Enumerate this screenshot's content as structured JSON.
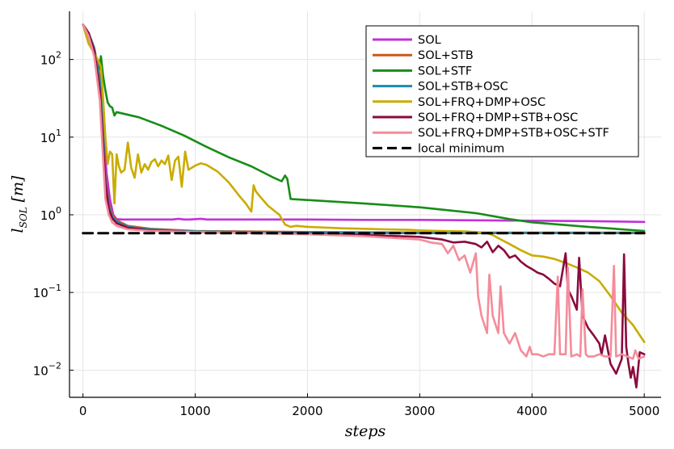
{
  "chart_data": {
    "type": "line",
    "xlabel": "steps",
    "ylabel": "l_SOL [m]",
    "ylabel_main": "l",
    "ylabel_sub": "SOL",
    "ylabel_unit": "[m]",
    "xlim": [
      -120,
      5150
    ],
    "ylim_log10": [
      -2.35,
      2.62
    ],
    "yscale": "log",
    "grid": true,
    "legend_position": "top-right",
    "x_ticks": [
      0,
      1000,
      2000,
      3000,
      4000,
      5000
    ],
    "x_tick_labels": [
      "0",
      "1000",
      "2000",
      "3000",
      "4000",
      "5000"
    ],
    "y_ticks": [
      {
        "mantissa": "10",
        "exp": "2",
        "value": 100
      },
      {
        "mantissa": "10",
        "exp": "1",
        "value": 10
      },
      {
        "mantissa": "10",
        "exp": "0",
        "value": 1
      },
      {
        "mantissa": "10",
        "exp": "−1",
        "value": 0.1
      },
      {
        "mantissa": "10",
        "exp": "−2",
        "value": 0.01
      }
    ],
    "series": [
      {
        "name": "SOL",
        "color": "#c231d8",
        "dash": false,
        "x": [
          0,
          50,
          100,
          150,
          180,
          210,
          240,
          270,
          300,
          350,
          500,
          800,
          850,
          900,
          950,
          1050,
          1100,
          1300,
          1500,
          2000,
          2500,
          3000,
          3500,
          4000,
          4500,
          5000
        ],
        "y": [
          280,
          220,
          140,
          60,
          14,
          3.5,
          1.6,
          1.0,
          0.88,
          0.87,
          0.87,
          0.87,
          0.89,
          0.87,
          0.87,
          0.89,
          0.87,
          0.87,
          0.87,
          0.87,
          0.86,
          0.86,
          0.85,
          0.84,
          0.83,
          0.81
        ]
      },
      {
        "name": "SOL+STB",
        "color": "#c85a1a",
        "dash": false,
        "x": [
          0,
          50,
          100,
          150,
          180,
          200,
          230,
          260,
          300,
          400,
          600,
          1000,
          2000,
          3000,
          4000,
          5000
        ],
        "y": [
          280,
          220,
          140,
          60,
          12,
          3.0,
          1.4,
          1.0,
          0.85,
          0.72,
          0.66,
          0.62,
          0.6,
          0.59,
          0.59,
          0.59
        ]
      },
      {
        "name": "SOL+STF",
        "color": "#178d17",
        "dash": false,
        "x": [
          0,
          50,
          100,
          130,
          140,
          160,
          180,
          200,
          220,
          240,
          260,
          280,
          300,
          500,
          700,
          900,
          1100,
          1300,
          1500,
          1700,
          1770,
          1800,
          1820,
          1850,
          2000,
          2500,
          3000,
          3500,
          3800,
          4000,
          4500,
          5000
        ],
        "y": [
          280,
          200,
          120,
          80,
          70,
          110,
          60,
          40,
          28,
          25,
          24,
          19,
          21,
          18,
          14,
          10.5,
          7.5,
          5.5,
          4.2,
          3.0,
          2.7,
          3.2,
          2.9,
          1.6,
          1.55,
          1.4,
          1.25,
          1.05,
          0.88,
          0.8,
          0.7,
          0.62
        ]
      },
      {
        "name": "SOL+STB+OSC",
        "color": "#1a8bb0",
        "dash": false,
        "x": [
          0,
          50,
          100,
          150,
          180,
          200,
          230,
          260,
          300,
          400,
          600,
          1000,
          2000,
          3000,
          4000,
          5000
        ],
        "y": [
          280,
          220,
          140,
          55,
          11,
          2.8,
          1.3,
          0.95,
          0.82,
          0.7,
          0.65,
          0.61,
          0.59,
          0.58,
          0.58,
          0.58
        ]
      },
      {
        "name": "SOL+FRQ+DMP+OSC",
        "color": "#c9ac00",
        "dash": false,
        "x": [
          0,
          50,
          100,
          140,
          160,
          180,
          200,
          220,
          240,
          260,
          280,
          300,
          320,
          340,
          370,
          400,
          430,
          460,
          490,
          520,
          550,
          580,
          610,
          640,
          670,
          700,
          730,
          760,
          790,
          820,
          850,
          880,
          910,
          940,
          1000,
          1050,
          1100,
          1200,
          1300,
          1400,
          1450,
          1500,
          1520,
          1540,
          1580,
          1650,
          1750,
          1800,
          1850,
          1900,
          2000,
          2100,
          2200,
          2300,
          2500,
          2700,
          2900,
          3000,
          3200,
          3400,
          3500,
          3600,
          3650,
          3700,
          3800,
          3900,
          4000,
          4100,
          4200,
          4300,
          4400,
          4500,
          4600,
          4700,
          4800,
          4900,
          5000
        ],
        "y": [
          280,
          160,
          120,
          95,
          80,
          30,
          10,
          4.5,
          6.5,
          6.0,
          1.4,
          6.0,
          4.2,
          3.5,
          3.8,
          8.5,
          4.0,
          3.0,
          6.0,
          3.5,
          4.5,
          3.8,
          4.8,
          5.2,
          4.2,
          5.0,
          4.5,
          5.8,
          2.8,
          5.0,
          5.6,
          2.3,
          6.5,
          3.8,
          4.3,
          4.6,
          4.4,
          3.6,
          2.6,
          1.7,
          1.4,
          1.1,
          2.4,
          2.0,
          1.7,
          1.3,
          1.0,
          0.75,
          0.7,
          0.72,
          0.7,
          0.69,
          0.68,
          0.67,
          0.66,
          0.65,
          0.64,
          0.63,
          0.62,
          0.61,
          0.6,
          0.58,
          0.55,
          0.5,
          0.42,
          0.35,
          0.3,
          0.29,
          0.27,
          0.24,
          0.21,
          0.18,
          0.14,
          0.09,
          0.055,
          0.038,
          0.023
        ]
      },
      {
        "name": "SOL+FRQ+DMP+STB+OSC",
        "color": "#8a0a3e",
        "dash": false,
        "x": [
          0,
          50,
          100,
          150,
          180,
          200,
          230,
          260,
          300,
          400,
          600,
          1000,
          1500,
          2000,
          2500,
          3000,
          3200,
          3300,
          3400,
          3500,
          3550,
          3600,
          3650,
          3700,
          3750,
          3800,
          3850,
          3900,
          3950,
          4000,
          4050,
          4100,
          4150,
          4200,
          4250,
          4300,
          4320,
          4350,
          4400,
          4420,
          4450,
          4500,
          4550,
          4600,
          4620,
          4650,
          4700,
          4750,
          4800,
          4820,
          4840,
          4860,
          4880,
          4900,
          4930,
          4960,
          5000
        ],
        "y": [
          280,
          220,
          130,
          40,
          8,
          2.5,
          1.2,
          0.9,
          0.78,
          0.68,
          0.63,
          0.6,
          0.58,
          0.57,
          0.55,
          0.52,
          0.48,
          0.44,
          0.45,
          0.42,
          0.38,
          0.45,
          0.33,
          0.4,
          0.35,
          0.28,
          0.3,
          0.25,
          0.22,
          0.2,
          0.18,
          0.17,
          0.15,
          0.13,
          0.12,
          0.32,
          0.11,
          0.09,
          0.06,
          0.28,
          0.05,
          0.035,
          0.028,
          0.022,
          0.016,
          0.028,
          0.012,
          0.009,
          0.014,
          0.31,
          0.02,
          0.012,
          0.008,
          0.011,
          0.006,
          0.017,
          0.016
        ]
      },
      {
        "name": "SOL+FRQ+DMP+STB+OSC+STF",
        "color": "#f48c9a",
        "dash": false,
        "x": [
          0,
          50,
          100,
          150,
          180,
          200,
          230,
          260,
          300,
          400,
          600,
          1000,
          1500,
          2000,
          2500,
          2800,
          3000,
          3100,
          3200,
          3250,
          3300,
          3350,
          3400,
          3450,
          3500,
          3520,
          3550,
          3600,
          3620,
          3650,
          3700,
          3720,
          3750,
          3800,
          3850,
          3900,
          3950,
          3980,
          4000,
          4050,
          4100,
          4150,
          4200,
          4230,
          4250,
          4300,
          4320,
          4350,
          4400,
          4430,
          4450,
          4480,
          4500,
          4550,
          4600,
          4650,
          4700,
          4730,
          4750,
          4800,
          4850,
          4900,
          4920,
          4950,
          5000
        ],
        "y": [
          280,
          200,
          110,
          30,
          5,
          1.6,
          1.0,
          0.8,
          0.72,
          0.65,
          0.62,
          0.6,
          0.58,
          0.56,
          0.53,
          0.5,
          0.48,
          0.44,
          0.42,
          0.32,
          0.4,
          0.26,
          0.3,
          0.18,
          0.32,
          0.09,
          0.05,
          0.03,
          0.17,
          0.05,
          0.03,
          0.12,
          0.03,
          0.022,
          0.03,
          0.018,
          0.015,
          0.02,
          0.016,
          0.016,
          0.015,
          0.016,
          0.016,
          0.16,
          0.016,
          0.016,
          0.21,
          0.015,
          0.016,
          0.015,
          0.11,
          0.016,
          0.015,
          0.015,
          0.016,
          0.015,
          0.015,
          0.22,
          0.015,
          0.016,
          0.015,
          0.014,
          0.018,
          0.014,
          0.015
        ]
      },
      {
        "name": "local minimum",
        "color": "#000000",
        "dash": true,
        "x": [
          0,
          5000
        ],
        "y": [
          0.58,
          0.58
        ]
      }
    ]
  }
}
